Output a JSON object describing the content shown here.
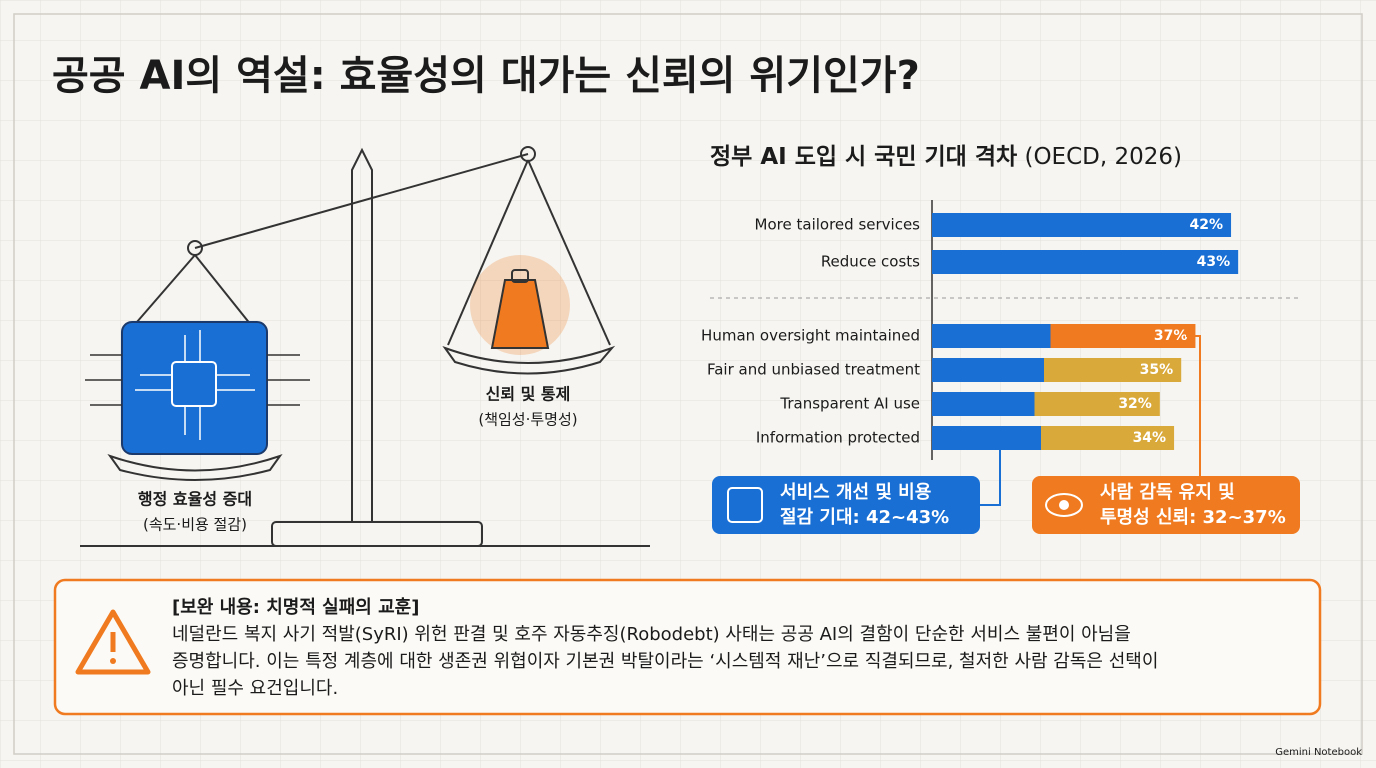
{
  "title": "공공 AI의 역설: 효율성의 대가는 신뢰의 위기인가?",
  "illustration": {
    "left_label": "행정 효율성 증대",
    "left_sub": "(속도·비용 절감)",
    "right_label": "신뢰 및 통제",
    "right_sub": "(책임성·투명성)"
  },
  "chart_data": {
    "type": "barh",
    "title": "정부 AI 도입 시 국민 기대 격차",
    "title_note": "(OECD, 2026)",
    "categories": [
      "More tailored services",
      "Reduce costs",
      "Human oversight maintained",
      "Fair and unbiased treatment",
      "Transparent AI use",
      "Information protected"
    ],
    "values": [
      42,
      43,
      37,
      35,
      32,
      34
    ],
    "value_labels": [
      "42%",
      "43%",
      "37%",
      "35%",
      "32%",
      "34%"
    ],
    "colors": [
      "#1a6fd4",
      "#1a6fd4",
      "#f07a1f",
      "#d9a93a",
      "#d9a93a",
      "#d9a93a"
    ],
    "xlim": [
      0,
      50
    ]
  },
  "callouts": [
    {
      "line1": "서비스 개선 및 비용",
      "line2": "절감 기대: 42~43%"
    },
    {
      "line1": "사람 감독 유지 및",
      "line2": "투명성 신뢰: 32~37%"
    }
  ],
  "note": {
    "heading": "[보완 내용: 치명적 실패의 교훈]",
    "lines": [
      "네덜란드 복지 사기 적발(SyRI) 위헌 판결 및 호주 자동추징(Robodebt) 사태는 공공 AI의 결함이 단순한 서비스 불편이 아님을",
      "증명합니다. 이는 특정 계층에 대한 생존권 위협이자 기본권 박탈이라는 ‘시스템적 재난’으로 직결되므로, 철저한 사람 감독은 선택이",
      "아닌 필수 요건입니다."
    ]
  },
  "watermark": "Gemini Notebook"
}
